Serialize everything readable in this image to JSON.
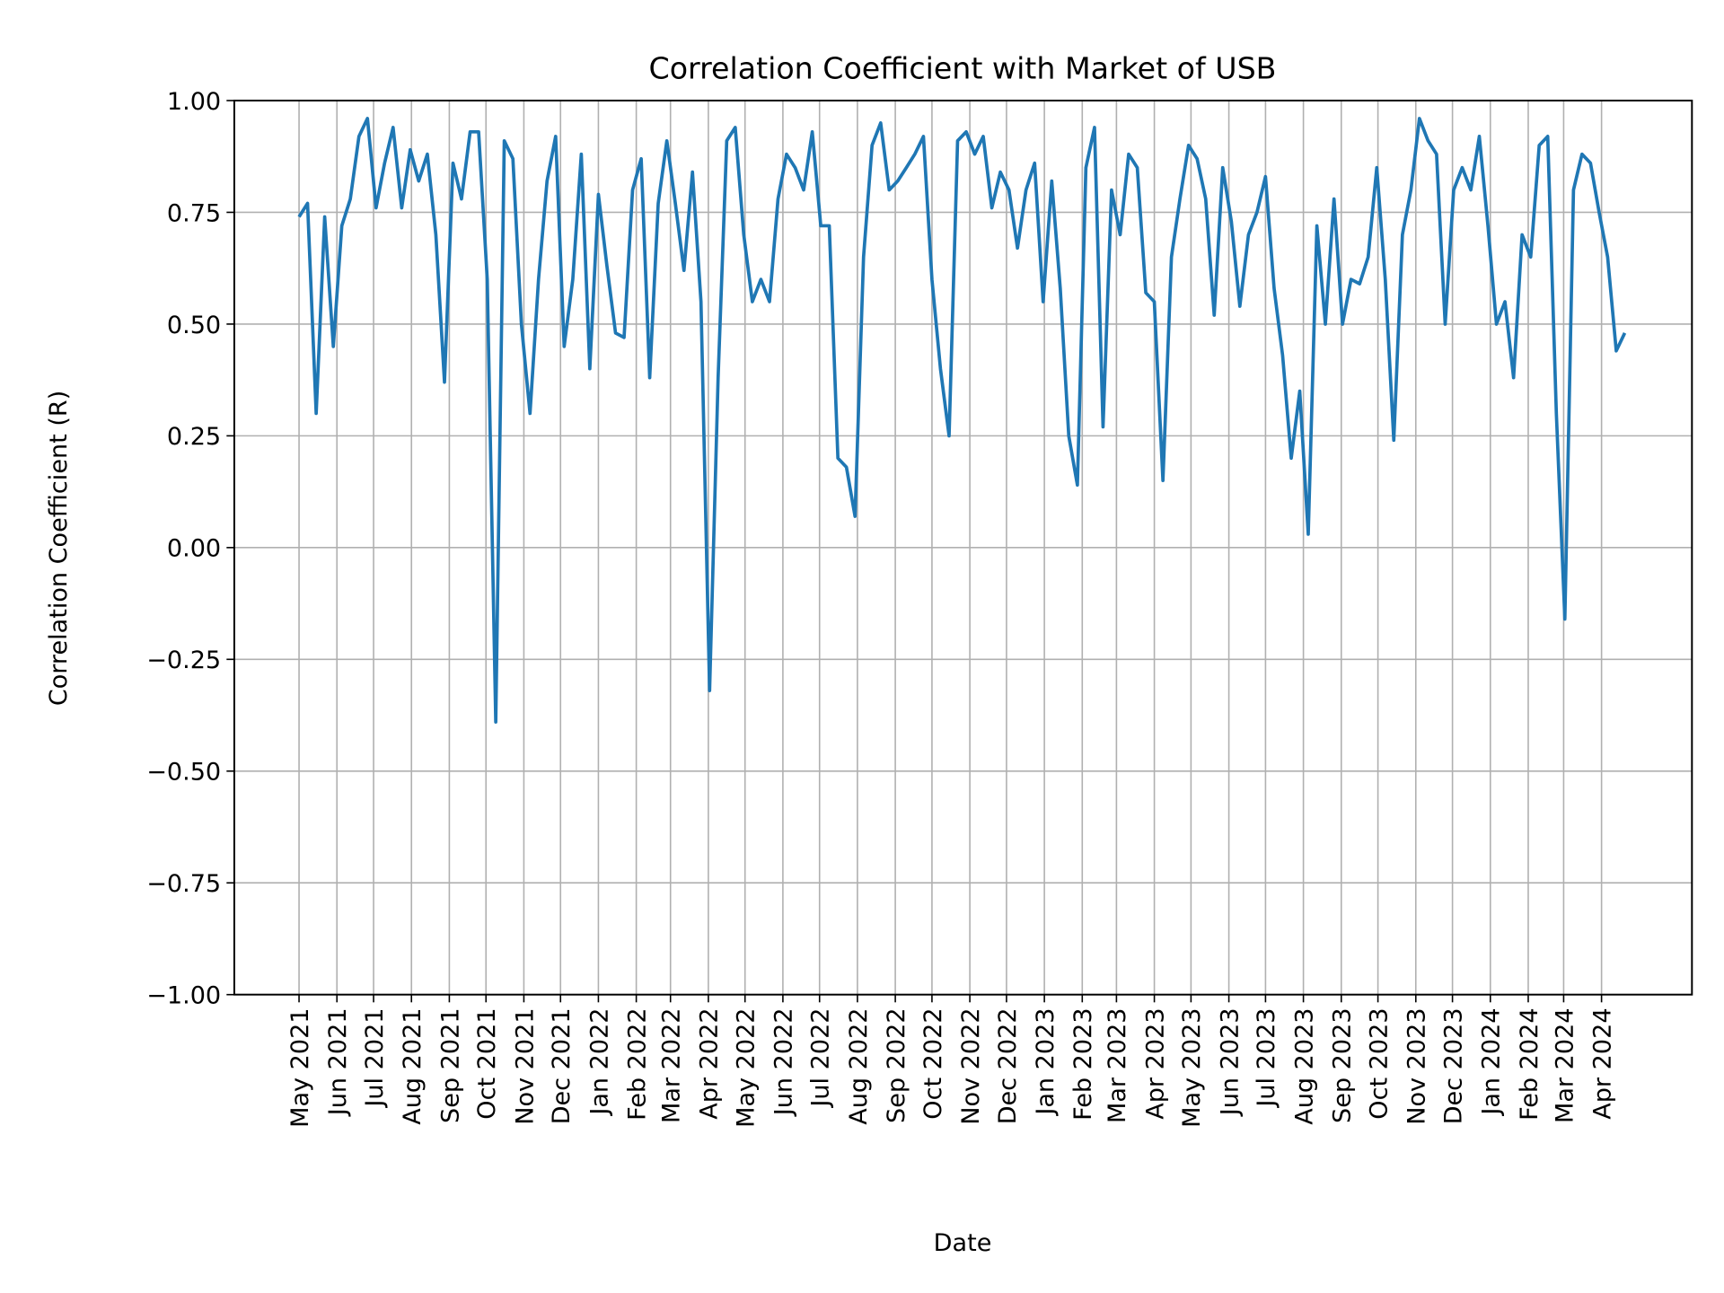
{
  "chart_data": {
    "type": "line",
    "title": "Correlation Coefficient with Market of USB",
    "xlabel": "Date",
    "ylabel": "Correlation Coefficient (R)",
    "xlim": [
      "2021-03-09",
      "2024-06-14"
    ],
    "ylim": [
      -1.0,
      1.0
    ],
    "yticks": [
      -1.0,
      -0.75,
      -0.5,
      -0.25,
      0.0,
      0.25,
      0.5,
      0.75,
      1.0
    ],
    "ytick_labels": [
      "−1.00",
      "−0.75",
      "−0.50",
      "−0.25",
      "0.00",
      "0.25",
      "0.50",
      "0.75",
      "1.00"
    ],
    "xticks": [
      "2021-05-01",
      "2021-06-01",
      "2021-07-01",
      "2021-08-01",
      "2021-09-01",
      "2021-10-01",
      "2021-11-01",
      "2021-12-01",
      "2022-01-01",
      "2022-02-01",
      "2022-03-01",
      "2022-04-01",
      "2022-05-01",
      "2022-06-01",
      "2022-07-01",
      "2022-08-01",
      "2022-09-01",
      "2022-10-01",
      "2022-11-01",
      "2022-12-01",
      "2023-01-01",
      "2023-02-01",
      "2023-03-01",
      "2023-04-01",
      "2023-05-01",
      "2023-06-01",
      "2023-07-01",
      "2023-08-01",
      "2023-09-01",
      "2023-10-01",
      "2023-11-01",
      "2023-12-01",
      "2024-01-01",
      "2024-02-01",
      "2024-03-01",
      "2024-04-01"
    ],
    "xtick_labels": [
      "May 2021",
      "Jun 2021",
      "Jul 2021",
      "Aug 2021",
      "Sep 2021",
      "Oct 2021",
      "Nov 2021",
      "Dec 2021",
      "Jan 2022",
      "Feb 2022",
      "Mar 2022",
      "Apr 2022",
      "May 2022",
      "Jun 2022",
      "Jul 2022",
      "Aug 2022",
      "Sep 2022",
      "Oct 2022",
      "Nov 2022",
      "Dec 2022",
      "Jan 2023",
      "Feb 2023",
      "Mar 2023",
      "Apr 2023",
      "May 2023",
      "Jun 2023",
      "Jul 2023",
      "Aug 2023",
      "Sep 2023",
      "Oct 2023",
      "Nov 2023",
      "Dec 2023",
      "Jan 2024",
      "Feb 2024",
      "Mar 2024",
      "Apr 2024"
    ],
    "grid": true,
    "color": "#1f77b4",
    "series": [
      {
        "x": [
          "2021-05-01",
          "2021-05-08",
          "2021-05-15",
          "2021-05-22",
          "2021-05-29",
          "2021-06-05",
          "2021-06-12",
          "2021-06-19",
          "2021-06-26",
          "2021-07-03",
          "2021-07-10",
          "2021-07-17",
          "2021-07-24",
          "2021-07-31",
          "2021-08-07",
          "2021-08-14",
          "2021-08-21",
          "2021-08-28",
          "2021-09-04",
          "2021-09-11",
          "2021-09-18",
          "2021-09-25",
          "2021-10-02",
          "2021-10-09",
          "2021-10-16",
          "2021-10-23",
          "2021-10-30",
          "2021-11-06",
          "2021-11-13",
          "2021-11-20",
          "2021-11-27",
          "2021-12-04",
          "2021-12-11",
          "2021-12-18",
          "2021-12-25",
          "2022-01-01",
          "2022-01-08",
          "2022-01-15",
          "2022-01-22",
          "2022-01-29",
          "2022-02-05",
          "2022-02-12",
          "2022-02-19",
          "2022-02-26",
          "2022-03-05",
          "2022-03-12",
          "2022-03-19",
          "2022-03-26",
          "2022-04-02",
          "2022-04-09",
          "2022-04-16",
          "2022-04-23",
          "2022-04-30",
          "2022-05-07",
          "2022-05-14",
          "2022-05-21",
          "2022-05-28",
          "2022-06-04",
          "2022-06-11",
          "2022-06-18",
          "2022-06-25",
          "2022-07-02",
          "2022-07-09",
          "2022-07-16",
          "2022-07-23",
          "2022-07-30",
          "2022-08-06",
          "2022-08-13",
          "2022-08-20",
          "2022-08-27",
          "2022-09-03",
          "2022-09-10",
          "2022-09-17",
          "2022-09-24",
          "2022-10-01",
          "2022-10-08",
          "2022-10-15",
          "2022-10-22",
          "2022-10-29",
          "2022-11-05",
          "2022-11-12",
          "2022-11-19",
          "2022-11-26",
          "2022-12-03",
          "2022-12-10",
          "2022-12-17",
          "2022-12-24",
          "2022-12-31",
          "2023-01-07",
          "2023-01-14",
          "2023-01-21",
          "2023-01-28",
          "2023-02-04",
          "2023-02-11",
          "2023-02-18",
          "2023-02-25",
          "2023-03-04",
          "2023-03-11",
          "2023-03-18",
          "2023-03-25",
          "2023-04-01",
          "2023-04-08",
          "2023-04-15",
          "2023-04-22",
          "2023-04-29",
          "2023-05-06",
          "2023-05-13",
          "2023-05-20",
          "2023-05-27",
          "2023-06-03",
          "2023-06-10",
          "2023-06-17",
          "2023-06-24",
          "2023-07-01",
          "2023-07-08",
          "2023-07-15",
          "2023-07-22",
          "2023-07-29",
          "2023-08-05",
          "2023-08-12",
          "2023-08-19",
          "2023-08-26",
          "2023-09-02",
          "2023-09-09",
          "2023-09-16",
          "2023-09-23",
          "2023-09-30",
          "2023-10-07",
          "2023-10-14",
          "2023-10-21",
          "2023-10-28",
          "2023-11-04",
          "2023-11-11",
          "2023-11-18",
          "2023-11-25",
          "2023-12-02",
          "2023-12-09",
          "2023-12-16",
          "2023-12-23",
          "2023-12-30",
          "2024-01-06",
          "2024-01-13",
          "2024-01-20",
          "2024-01-27",
          "2024-02-03",
          "2024-02-10",
          "2024-02-17",
          "2024-02-24",
          "2024-03-02",
          "2024-03-09",
          "2024-03-16",
          "2024-03-23",
          "2024-03-30",
          "2024-04-06",
          "2024-04-13",
          "2024-04-20"
        ],
        "y": [
          0.74,
          0.77,
          0.3,
          0.74,
          0.45,
          0.72,
          0.78,
          0.92,
          0.96,
          0.76,
          0.86,
          0.94,
          0.76,
          0.89,
          0.82,
          0.88,
          0.7,
          0.37,
          0.86,
          0.78,
          0.93,
          0.93,
          0.6,
          -0.39,
          0.91,
          0.87,
          0.5,
          0.3,
          0.6,
          0.82,
          0.92,
          0.45,
          0.6,
          0.88,
          0.4,
          0.79,
          0.63,
          0.48,
          0.47,
          0.8,
          0.87,
          0.38,
          0.77,
          0.91,
          0.77,
          0.62,
          0.84,
          0.55,
          -0.32,
          0.38,
          0.91,
          0.94,
          0.7,
          0.55,
          0.6,
          0.55,
          0.78,
          0.88,
          0.85,
          0.8,
          0.93,
          0.72,
          0.72,
          0.2,
          0.18,
          0.07,
          0.65,
          0.9,
          0.95,
          0.8,
          0.82,
          0.85,
          0.88,
          0.92,
          0.6,
          0.4,
          0.25,
          0.91,
          0.93,
          0.88,
          0.92,
          0.76,
          0.84,
          0.8,
          0.67,
          0.8,
          0.86,
          0.55,
          0.82,
          0.58,
          0.25,
          0.14,
          0.85,
          0.94,
          0.27,
          0.8,
          0.7,
          0.88,
          0.85,
          0.57,
          0.55,
          0.15,
          0.65,
          0.78,
          0.9,
          0.87,
          0.78,
          0.52,
          0.85,
          0.73,
          0.54,
          0.7,
          0.75,
          0.83,
          0.58,
          0.43,
          0.2,
          0.35,
          0.03,
          0.72,
          0.5,
          0.78,
          0.5,
          0.6,
          0.59,
          0.65,
          0.85,
          0.6,
          0.24,
          0.7,
          0.8,
          0.96,
          0.91,
          0.88,
          0.5,
          0.8,
          0.85,
          0.8,
          0.92,
          0.72,
          0.5,
          0.55,
          0.38,
          0.7,
          0.65,
          0.9,
          0.92,
          0.3,
          -0.16,
          0.8,
          0.88,
          0.86,
          0.75,
          0.65,
          0.44,
          0.48
        ]
      }
    ]
  }
}
